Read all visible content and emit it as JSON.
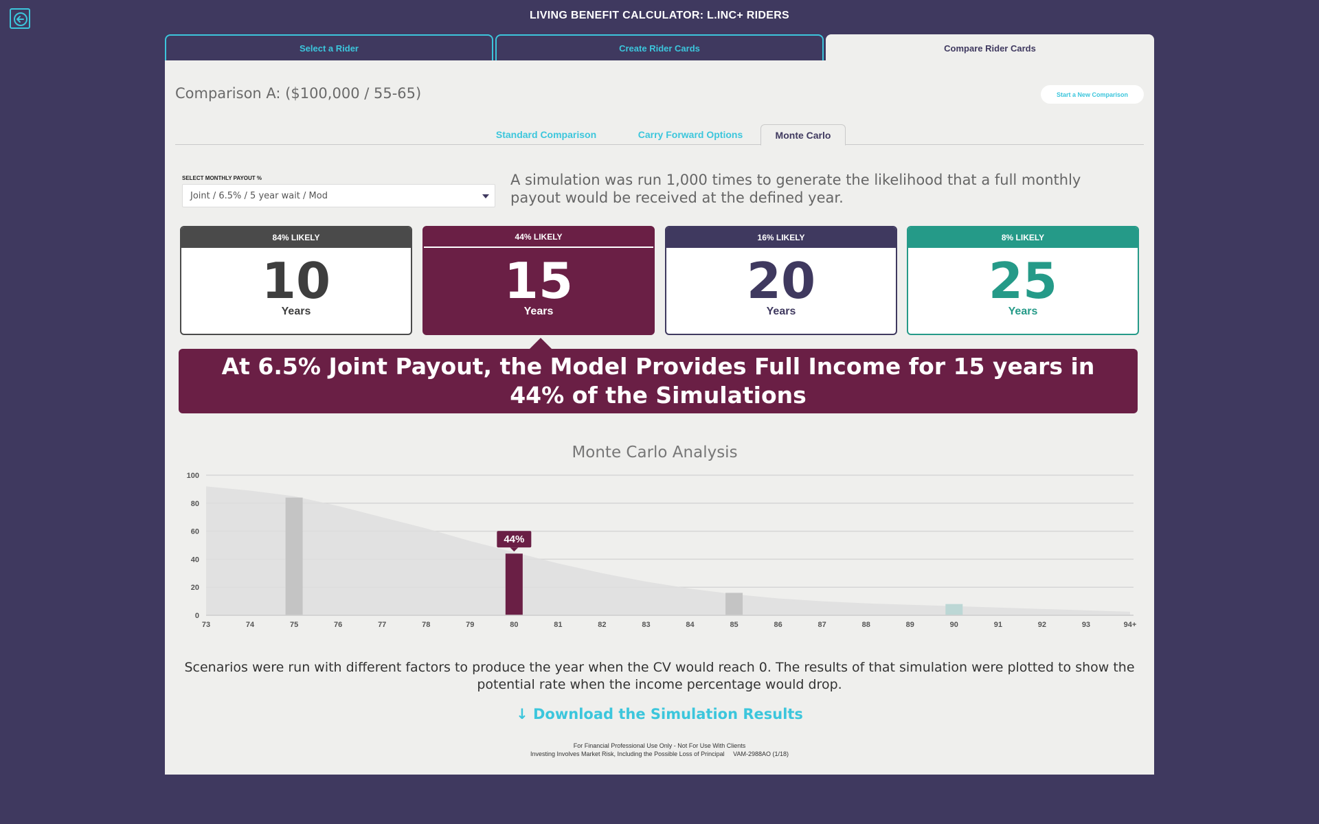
{
  "header": {
    "app_title": "LIVING BENEFIT CALCULATOR: L.INC+ RIDERS"
  },
  "main_tabs": [
    {
      "label": "Select a Rider"
    },
    {
      "label": "Create Rider Cards"
    },
    {
      "label": "Compare Rider Cards"
    }
  ],
  "comparison": {
    "title": "Comparison A: ($100,000 / 55-65)",
    "new_button": "Start a New Comparison"
  },
  "sub_tabs": [
    {
      "label": "Standard Comparison"
    },
    {
      "label": "Carry Forward Options"
    },
    {
      "label": "Monte Carlo"
    }
  ],
  "payout_select": {
    "label": "SELECT MONTHLY PAYOUT %",
    "value": "Joint / 6.5% / 5 year wait / Mod"
  },
  "simulation_description": "A simulation was run 1,000 times to generate the likelihood that a full monthly payout would be received at the defined year.",
  "cards": [
    {
      "likelihood": "84% LIKELY",
      "years": "10",
      "unit": "Years",
      "color": "#4a4a4a"
    },
    {
      "likelihood": "44% LIKELY",
      "years": "15",
      "unit": "Years",
      "color": "#6a1f45"
    },
    {
      "likelihood": "16% LIKELY",
      "years": "20",
      "unit": "Years",
      "color": "#3f395f"
    },
    {
      "likelihood": "8% LIKELY",
      "years": "25",
      "unit": "Years",
      "color": "#259a88"
    }
  ],
  "banner": "At 6.5% Joint Payout, the Model Provides Full Income for 15 years in 44% of the Simulations",
  "chart_data": {
    "type": "area",
    "title": "Monte Carlo Analysis",
    "xlabel": "",
    "ylabel": "",
    "ylim": [
      0,
      100
    ],
    "y_ticks": [
      0,
      20,
      40,
      60,
      80,
      100
    ],
    "categories": [
      "73",
      "74",
      "75",
      "76",
      "77",
      "78",
      "79",
      "80",
      "81",
      "82",
      "83",
      "84",
      "85",
      "86",
      "87",
      "88",
      "89",
      "90",
      "91",
      "92",
      "93",
      "94+"
    ],
    "series": [
      {
        "values": [
          92,
          89,
          85,
          78,
          70,
          62,
          53,
          45,
          37,
          30,
          24,
          19,
          15,
          12,
          10,
          8.5,
          7.5,
          6.5,
          5.5,
          4.5,
          3.5,
          2.5
        ]
      }
    ],
    "highlight_bars": [
      {
        "category": "75",
        "value": 84,
        "color": "#c4c4c4"
      },
      {
        "category": "80",
        "value": 44,
        "color": "#6a1f45",
        "label": "44%"
      },
      {
        "category": "85",
        "value": 16,
        "color": "#c4c4c4"
      },
      {
        "category": "90",
        "value": 8,
        "color": "#bcd7d5"
      }
    ],
    "grid": true
  },
  "footnote": "Scenarios were run with different factors to produce the year when the CV would reach 0. The results of that simulation were plotted to show the potential rate when the income percentage would drop.",
  "download_link": "Download the Simulation Results",
  "legal": {
    "line1": "For Financial Professional Use Only - Not For Use With Clients",
    "line2": "Investing Involves Market Risk, Including the Possible Loss of Principal     VAM-2988AO (1/18)"
  },
  "colors": {
    "background": "#3f395f",
    "accent": "#3cc6dc",
    "maroon": "#6a1f45",
    "teal": "#259a88",
    "panel": "#efefed"
  }
}
